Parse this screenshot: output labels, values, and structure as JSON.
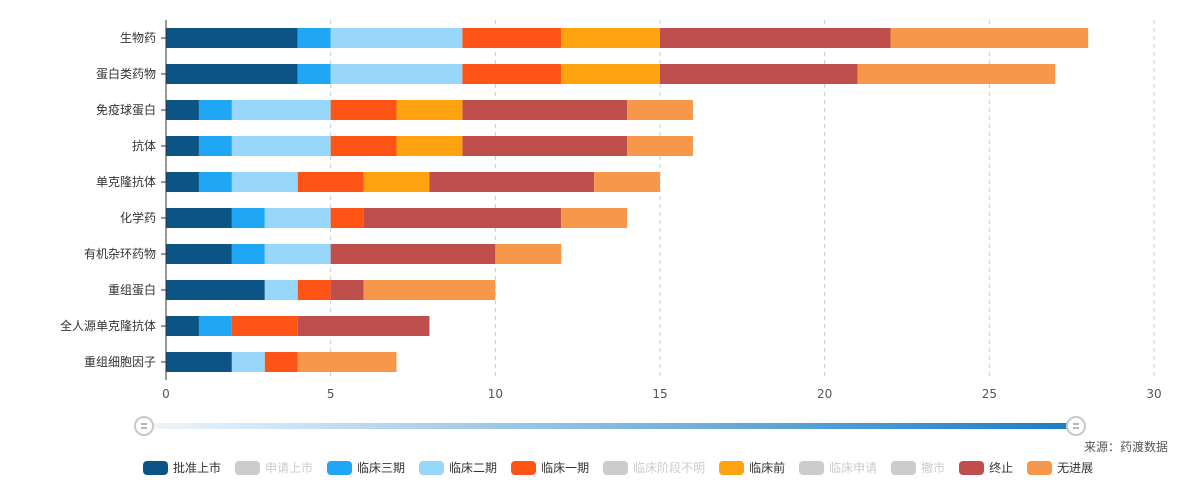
{
  "source_note": "来源：药渡数据",
  "legend": [
    {
      "label": "批准上市",
      "color": "#0d5486",
      "active": true
    },
    {
      "label": "申请上市",
      "color": "#cccccc",
      "active": false
    },
    {
      "label": "临床三期",
      "color": "#1fa6f5",
      "active": true
    },
    {
      "label": "临床二期",
      "color": "#99d7fa",
      "active": true
    },
    {
      "label": "临床一期",
      "color": "#fe5516",
      "active": true
    },
    {
      "label": "临床阶段不明",
      "color": "#cccccc",
      "active": false
    },
    {
      "label": "临床前",
      "color": "#ffa20f",
      "active": true
    },
    {
      "label": "临床申请",
      "color": "#cccccc",
      "active": false
    },
    {
      "label": "撤市",
      "color": "#cccccc",
      "active": false
    },
    {
      "label": "终止",
      "color": "#bf4f4c",
      "active": true
    },
    {
      "label": "无进展",
      "color": "#f6974a",
      "active": true
    }
  ],
  "chart_data": {
    "type": "bar",
    "orientation": "horizontal",
    "stacked": true,
    "categories": [
      "生物药",
      "蛋白类药物",
      "免疫球蛋白",
      "抗体",
      "单克隆抗体",
      "化学药",
      "有机杂环药物",
      "重组蛋白",
      "全人源单克隆抗体",
      "重组细胞因子"
    ],
    "series": [
      {
        "name": "批准上市",
        "color": "#0d5486",
        "values": [
          4,
          4,
          1,
          1,
          1,
          2,
          2,
          3,
          1,
          2
        ]
      },
      {
        "name": "临床三期",
        "color": "#1fa6f5",
        "values": [
          1,
          1,
          1,
          1,
          1,
          1,
          1,
          0,
          1,
          0
        ]
      },
      {
        "name": "临床二期",
        "color": "#99d7fa",
        "values": [
          4,
          4,
          3,
          3,
          2,
          2,
          2,
          1,
          0,
          1
        ]
      },
      {
        "name": "临床一期",
        "color": "#fe5516",
        "values": [
          3,
          3,
          2,
          2,
          2,
          1,
          0,
          1,
          2,
          1
        ]
      },
      {
        "name": "临床前",
        "color": "#ffa20f",
        "values": [
          3,
          3,
          2,
          2,
          2,
          0,
          0,
          0,
          0,
          0
        ]
      },
      {
        "name": "终止",
        "color": "#bf4f4c",
        "values": [
          7,
          6,
          5,
          5,
          5,
          6,
          5,
          1,
          4,
          0
        ]
      },
      {
        "name": "无进展",
        "color": "#f6974a",
        "values": [
          6,
          6,
          2,
          2,
          2,
          2,
          2,
          4,
          0,
          3
        ]
      }
    ],
    "xlim": [
      0,
      30
    ],
    "xticks": [
      0,
      5,
      10,
      15,
      20,
      25,
      30
    ],
    "grid": "vertical-dashed",
    "legend_position": "bottom",
    "data_zoom": {
      "start": 0,
      "end": 100
    }
  }
}
